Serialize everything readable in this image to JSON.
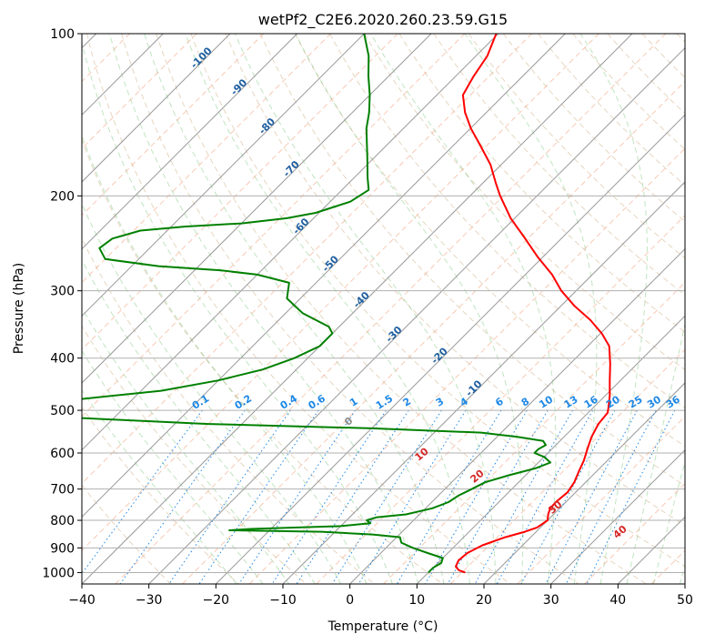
{
  "chart_data": {
    "type": "line",
    "title": "wetPf2_C2E6.2020.260.23.59.G15",
    "xlabel": "Temperature (°C)",
    "ylabel": "Pressure (hPa)",
    "xlim": [
      -40,
      50
    ],
    "ylim": [
      1050,
      100
    ],
    "y_scale": "log",
    "skew": "skew-T log-p",
    "grid": true,
    "x_ticks": [
      "−40",
      "−30",
      "−20",
      "−10",
      "0",
      "10",
      "20",
      "30",
      "40",
      "50"
    ],
    "y_ticks": [
      "100",
      "200",
      "300",
      "400",
      "500",
      "600",
      "700",
      "800",
      "900",
      "1000"
    ],
    "series": [
      {
        "color": "#ff0000",
        "points": [
          [
            1000,
            15.5
          ],
          [
            990,
            14.2
          ],
          [
            975,
            13.2
          ],
          [
            950,
            12.7
          ],
          [
            920,
            12.9
          ],
          [
            890,
            14.0
          ],
          [
            860,
            16.2
          ],
          [
            840,
            18.3
          ],
          [
            825,
            19.5
          ],
          [
            800,
            20.0
          ],
          [
            780,
            19.2
          ],
          [
            760,
            18.6
          ],
          [
            740,
            18.5
          ],
          [
            710,
            18.8
          ],
          [
            680,
            18.3
          ],
          [
            650,
            17.4
          ],
          [
            620,
            16.5
          ],
          [
            590,
            15.3
          ],
          [
            560,
            14.1
          ],
          [
            530,
            13.2
          ],
          [
            505,
            12.9
          ],
          [
            495,
            12.3
          ],
          [
            470,
            10.7
          ],
          [
            440,
            8.4
          ],
          [
            410,
            6.0
          ],
          [
            380,
            3.2
          ],
          [
            360,
            0.2
          ],
          [
            340,
            -3.5
          ],
          [
            320,
            -8.0
          ],
          [
            300,
            -12.2
          ],
          [
            280,
            -16.0
          ],
          [
            260,
            -20.7
          ],
          [
            240,
            -25.4
          ],
          [
            220,
            -30.6
          ],
          [
            200,
            -35.5
          ],
          [
            190,
            -37.9
          ],
          [
            175,
            -41.6
          ],
          [
            160,
            -46.4
          ],
          [
            150,
            -49.9
          ],
          [
            140,
            -53.2
          ],
          [
            130,
            -56.1
          ],
          [
            120,
            -57.3
          ],
          [
            110,
            -58.3
          ],
          [
            100,
            -60.3
          ]
        ]
      },
      {
        "color": "#008000",
        "points": [
          [
            1000,
            10.0
          ],
          [
            980,
            10.0
          ],
          [
            960,
            10.5
          ],
          [
            940,
            10.0
          ],
          [
            920,
            7.0
          ],
          [
            900,
            4.0
          ],
          [
            880,
            1.5
          ],
          [
            860,
            0.5
          ],
          [
            850,
            -4.0
          ],
          [
            840,
            -12.0
          ],
          [
            835,
            -26.0
          ],
          [
            830,
            -23.0
          ],
          [
            820,
            -10.0
          ],
          [
            810,
            -6.0
          ],
          [
            800,
            -7.0
          ],
          [
            790,
            -6.0
          ],
          [
            780,
            -2.0
          ],
          [
            760,
            1.0
          ],
          [
            740,
            2.5
          ],
          [
            720,
            3.0
          ],
          [
            700,
            4.0
          ],
          [
            680,
            5.0
          ],
          [
            660,
            7.5
          ],
          [
            640,
            10.5
          ],
          [
            625,
            11.8
          ],
          [
            610,
            10.0
          ],
          [
            600,
            8.0
          ],
          [
            590,
            8.0
          ],
          [
            580,
            8.5
          ],
          [
            570,
            7.5
          ],
          [
            560,
            3.0
          ],
          [
            550,
            -3.0
          ],
          [
            540,
            -20.0
          ],
          [
            530,
            -45.0
          ],
          [
            520,
            -60.0
          ],
          [
            510,
            -75.0
          ],
          [
            500,
            -84.0
          ],
          [
            495,
            -88.0
          ],
          [
            490,
            -82.0
          ],
          [
            480,
            -70.0
          ],
          [
            460,
            -57.0
          ],
          [
            440,
            -50.0
          ],
          [
            420,
            -45.0
          ],
          [
            400,
            -42.0
          ],
          [
            380,
            -40.0
          ],
          [
            360,
            -40.0
          ],
          [
            350,
            -41.5
          ],
          [
            330,
            -47.5
          ],
          [
            310,
            -52.0
          ],
          [
            300,
            -53.0
          ],
          [
            290,
            -54.0
          ],
          [
            280,
            -60.0
          ],
          [
            275,
            -66.0
          ],
          [
            270,
            -76.0
          ],
          [
            262,
            -85.0
          ],
          [
            250,
            -87.5
          ],
          [
            240,
            -87.0
          ],
          [
            232,
            -84.0
          ],
          [
            228,
            -78.0
          ],
          [
            225,
            -70.0
          ],
          [
            220,
            -64.0
          ],
          [
            215,
            -60.5
          ],
          [
            205,
            -57.0
          ],
          [
            195,
            -56.0
          ],
          [
            185,
            -58.0
          ],
          [
            170,
            -61.0
          ],
          [
            150,
            -65.5
          ],
          [
            140,
            -67.5
          ],
          [
            130,
            -70.0
          ],
          [
            120,
            -73.0
          ],
          [
            110,
            -76.0
          ],
          [
            100,
            -80.0
          ]
        ]
      }
    ],
    "isotherm_labels": [
      "-100",
      "-90",
      "-80",
      "-70",
      "-60",
      "-50",
      "-40",
      "-30",
      "-20",
      "-10"
    ],
    "mixing_ratio_labels": [
      "0.1",
      "0.2",
      "0.4",
      "0.6",
      "1",
      "1.5",
      "2",
      "3",
      "4",
      "6",
      "8",
      "10",
      "13",
      "16",
      "20",
      "25",
      "30",
      "36"
    ],
    "moist_adiabat_labels": [
      "0",
      "10",
      "20",
      "30",
      "40"
    ]
  }
}
